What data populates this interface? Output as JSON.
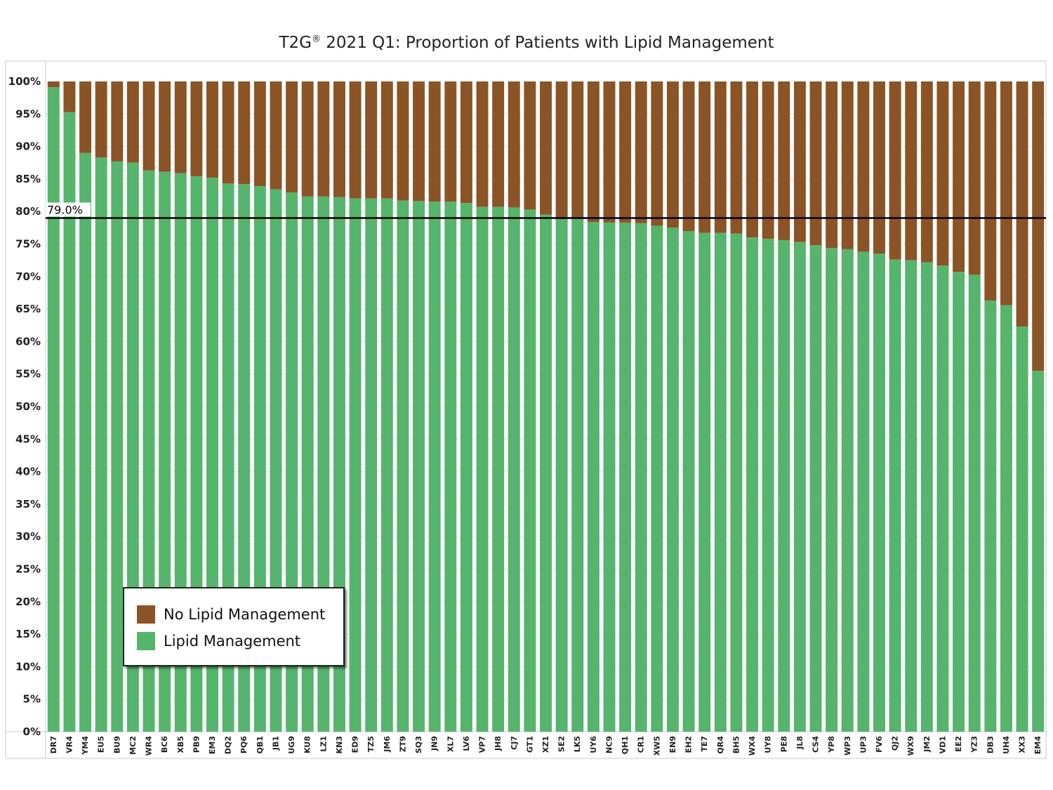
{
  "chart_data": {
    "type": "bar",
    "stacked": true,
    "percent_stacked": true,
    "title_main": "T2G",
    "title_sup": "®",
    "title_rest": " 2021 Q1: Proportion of Patients with Lipid Management",
    "categories": [
      "DR7",
      "VR4",
      "YM4",
      "EU5",
      "BU9",
      "MC2",
      "WR4",
      "BC6",
      "XB5",
      "PB9",
      "EM3",
      "DQ2",
      "PQ6",
      "QB1",
      "JB1",
      "UG9",
      "KU8",
      "LZ1",
      "KN3",
      "ED9",
      "TZ5",
      "JM6",
      "ZT9",
      "SQ3",
      "JN9",
      "XL7",
      "LV6",
      "VP7",
      "JH8",
      "CJ7",
      "GT1",
      "XZ1",
      "SE2",
      "LK5",
      "UY6",
      "NC9",
      "QH1",
      "CR1",
      "XW5",
      "EN9",
      "EH2",
      "TE7",
      "QR4",
      "BH5",
      "WX4",
      "UY8",
      "PE8",
      "JL8",
      "CS4",
      "YP8",
      "WP3",
      "UP3",
      "FV6",
      "QJ2",
      "WX9",
      "JM2",
      "VD1",
      "EE2",
      "YZ3",
      "DB3",
      "UH4",
      "XX3",
      "EM4"
    ],
    "series": [
      {
        "name": "Lipid Management",
        "color": "#56b46c",
        "values": [
          99.1,
          95.3,
          89.0,
          88.3,
          87.7,
          87.5,
          86.3,
          86.1,
          85.9,
          85.4,
          85.2,
          84.3,
          84.2,
          83.9,
          83.4,
          82.9,
          82.3,
          82.3,
          82.2,
          82.0,
          82.0,
          82.0,
          81.7,
          81.6,
          81.5,
          81.5,
          81.3,
          80.7,
          80.7,
          80.6,
          80.3,
          79.5,
          78.8,
          78.8,
          78.4,
          78.3,
          78.3,
          78.2,
          77.8,
          77.5,
          77.0,
          76.7,
          76.7,
          76.6,
          76.0,
          75.8,
          75.6,
          75.3,
          74.8,
          74.4,
          74.2,
          73.8,
          73.5,
          72.6,
          72.5,
          72.2,
          71.7,
          70.7,
          70.3,
          66.3,
          65.6,
          62.3,
          55.5
        ]
      },
      {
        "name": "No Lipid Management",
        "color": "#8b5426"
      }
    ],
    "reference_line": {
      "value": 79.0,
      "label": "79.0%"
    },
    "ylim": [
      0,
      100
    ],
    "y_ticks": [
      "0%",
      "5%",
      "10%",
      "15%",
      "20%",
      "25%",
      "30%",
      "35%",
      "40%",
      "45%",
      "50%",
      "55%",
      "60%",
      "65%",
      "70%",
      "75%",
      "80%",
      "85%",
      "90%",
      "95%",
      "100%"
    ],
    "grid": true,
    "legend_position": "bottom-left"
  }
}
